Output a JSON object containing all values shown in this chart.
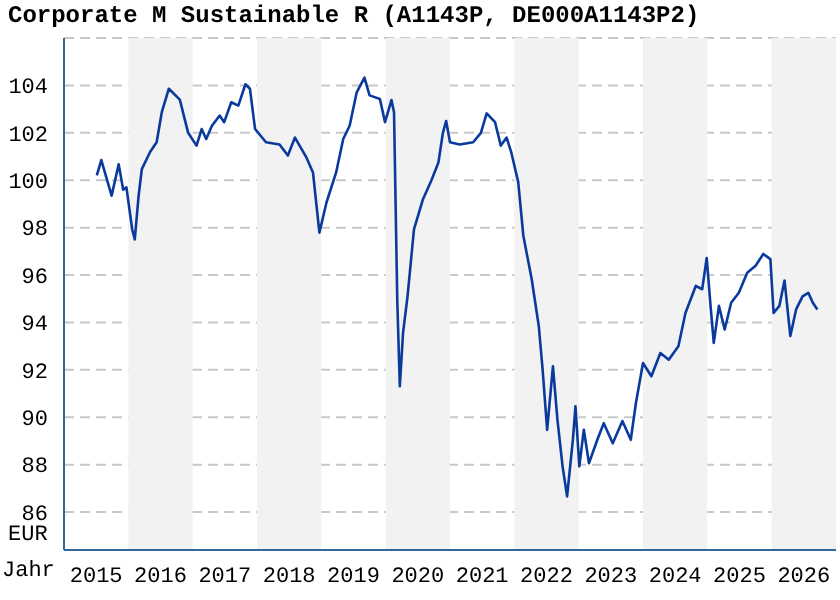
{
  "chart_data": {
    "type": "line",
    "title": "Corporate M Sustainable R (A1143P, DE000A1143P2)",
    "xlabel": "Jahr",
    "ylabel": "EUR",
    "xlim": [
      2015,
      2027
    ],
    "xticks": [
      {
        "value": 2015.5,
        "label": "2015"
      },
      {
        "value": 2016.5,
        "label": "2016"
      },
      {
        "value": 2017.5,
        "label": "2017"
      },
      {
        "value": 2018.5,
        "label": "2018"
      },
      {
        "value": 2019.5,
        "label": "2019"
      },
      {
        "value": 2020.5,
        "label": "2020"
      },
      {
        "value": 2021.5,
        "label": "2021"
      },
      {
        "value": 2022.5,
        "label": "2022"
      },
      {
        "value": 2023.5,
        "label": "2023"
      },
      {
        "value": 2024.5,
        "label": "2024"
      },
      {
        "value": 2025.5,
        "label": "2025"
      },
      {
        "value": 2026.5,
        "label": "2026"
      }
    ],
    "ylim": [
      84.4,
      106
    ],
    "yticks": [
      86,
      88,
      90,
      92,
      94,
      96,
      98,
      100,
      102,
      104
    ],
    "grid": "y",
    "marker": "none",
    "line_style": "solid",
    "bands": [
      {
        "axis": "x",
        "from": 2016,
        "to": 2017,
        "color": "#f2f2f2"
      },
      {
        "axis": "x",
        "from": 2018,
        "to": 2019,
        "color": "#f2f2f2"
      },
      {
        "axis": "x",
        "from": 2020,
        "to": 2021,
        "color": "#f2f2f2"
      },
      {
        "axis": "x",
        "from": 2022,
        "to": 2023,
        "color": "#f2f2f2"
      },
      {
        "axis": "x",
        "from": 2024,
        "to": 2025,
        "color": "#f2f2f2"
      },
      {
        "axis": "x",
        "from": 2026,
        "to": 2027,
        "color": "#f2f2f2"
      }
    ],
    "series": [
      {
        "color": "#0a3a9e",
        "x": [
          2015.51,
          2015.58,
          2015.74,
          2015.85,
          2015.92,
          2015.97,
          2016.06,
          2016.1,
          2016.16,
          2016.21,
          2016.34,
          2016.44,
          2016.52,
          2016.63,
          2016.8,
          2016.93,
          2017.06,
          2017.14,
          2017.21,
          2017.3,
          2017.42,
          2017.49,
          2017.6,
          2017.71,
          2017.82,
          2017.89,
          2017.97,
          2018.14,
          2018.35,
          2018.48,
          2018.59,
          2018.77,
          2018.87,
          2018.97,
          2019.08,
          2019.23,
          2019.34,
          2019.44,
          2019.55,
          2019.67,
          2019.75,
          2019.91,
          2019.99,
          2020.09,
          2020.13,
          2020.18,
          2020.22,
          2020.27,
          2020.34,
          2020.44,
          2020.58,
          2020.71,
          2020.82,
          2020.89,
          2020.94,
          2021.0,
          2021.15,
          2021.36,
          2021.48,
          2021.57,
          2021.7,
          2021.79,
          2021.88,
          2021.95,
          2022.06,
          2022.14,
          2022.27,
          2022.38,
          2022.44,
          2022.51,
          2022.6,
          2022.67,
          2022.75,
          2022.82,
          2022.91,
          2022.95,
          2023.01,
          2023.08,
          2023.16,
          2023.29,
          2023.39,
          2023.53,
          2023.68,
          2023.81,
          2023.89,
          2024.0,
          2024.13,
          2024.27,
          2024.4,
          2024.55,
          2024.66,
          2024.82,
          2024.92,
          2024.99,
          2025.05,
          2025.1,
          2025.18,
          2025.27,
          2025.37,
          2025.49,
          2025.62,
          2025.75,
          2025.87,
          2025.98,
          2026.03,
          2026.12,
          2026.2,
          2026.29,
          2026.38,
          2026.48,
          2026.57,
          2026.64,
          2026.71
        ],
        "values": [
          100.2,
          100.85,
          99.35,
          100.67,
          99.6,
          99.7,
          97.93,
          97.5,
          99.35,
          100.47,
          101.2,
          101.6,
          102.87,
          103.86,
          103.4,
          102.0,
          101.46,
          102.16,
          101.74,
          102.3,
          102.73,
          102.45,
          103.29,
          103.15,
          104.05,
          103.86,
          102.16,
          101.6,
          101.51,
          101.04,
          101.8,
          100.95,
          100.33,
          97.79,
          99.06,
          100.33,
          101.74,
          102.3,
          103.71,
          104.33,
          103.58,
          103.43,
          102.45,
          103.38,
          102.87,
          94.97,
          91.31,
          93.56,
          95.1,
          97.93,
          99.2,
          99.99,
          100.75,
          102.0,
          102.5,
          101.6,
          101.51,
          101.6,
          102.0,
          102.82,
          102.45,
          101.46,
          101.8,
          101.2,
          99.93,
          97.66,
          95.82,
          93.85,
          92.0,
          89.47,
          92.15,
          89.9,
          87.93,
          86.66,
          89.05,
          90.46,
          87.93,
          89.47,
          88.06,
          89.05,
          89.75,
          88.9,
          89.84,
          89.05,
          90.6,
          92.29,
          91.73,
          92.71,
          92.43,
          93.0,
          94.4,
          95.54,
          95.4,
          96.72,
          94.7,
          93.14,
          94.7,
          93.7,
          94.83,
          95.25,
          96.1,
          96.39,
          96.89,
          96.67,
          94.4,
          94.7,
          95.77,
          93.43,
          94.55,
          95.1,
          95.25,
          94.83,
          94.55
        ]
      }
    ]
  }
}
